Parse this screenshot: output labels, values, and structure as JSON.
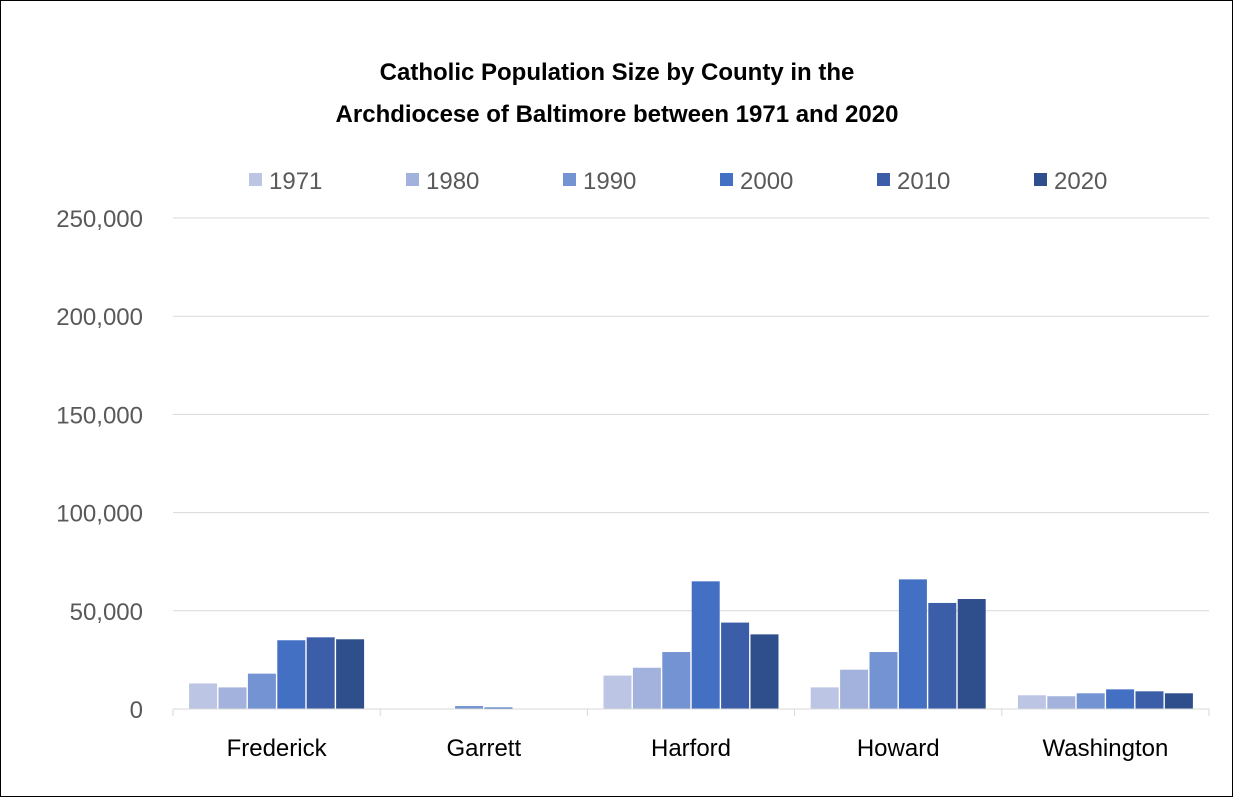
{
  "chart_data": {
    "type": "bar",
    "title_lines": [
      "Catholic Population Size by County in the",
      "Archdiocese of Baltimore between 1971 and 2020"
    ],
    "categories": [
      "Frederick",
      "Garrett",
      "Harford",
      "Howard",
      "Washington"
    ],
    "series": [
      {
        "name": "1971",
        "color": "#bcc6e4",
        "values": [
          13000,
          0,
          17000,
          11000,
          7000
        ]
      },
      {
        "name": "1980",
        "color": "#a3b2dc",
        "values": [
          11000,
          0,
          21000,
          20000,
          6500
        ]
      },
      {
        "name": "1990",
        "color": "#7493d3",
        "values": [
          18000,
          1500,
          29000,
          29000,
          8000
        ]
      },
      {
        "name": "2000",
        "color": "#4470c4",
        "values": [
          35000,
          800,
          65000,
          66000,
          10000
        ]
      },
      {
        "name": "2010",
        "color": "#3c5ea9",
        "values": [
          36500,
          0,
          44000,
          54000,
          9000
        ]
      },
      {
        "name": "2020",
        "color": "#2f4f8c",
        "values": [
          35500,
          0,
          38000,
          56000,
          8000
        ]
      }
    ],
    "ylim": [
      0,
      250000
    ],
    "yticks": [
      0,
      50000,
      100000,
      150000,
      200000,
      250000
    ],
    "ytick_labels": [
      "0",
      "50,000",
      "100,000",
      "150,000",
      "200,000",
      "250,000"
    ],
    "grid": true,
    "legend_position": "top"
  }
}
